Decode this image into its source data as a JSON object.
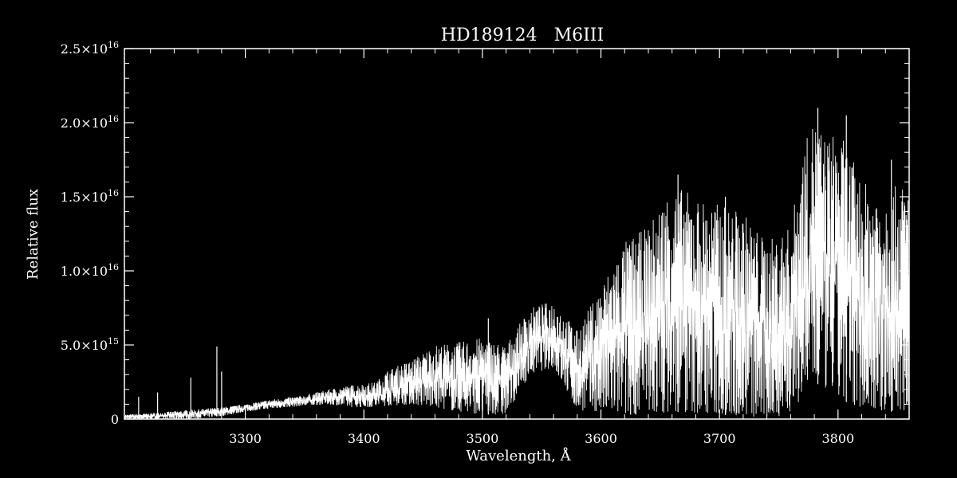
{
  "chart_data": {
    "type": "line",
    "title": "HD189124   M6III",
    "xlabel": "Wavelength, Å",
    "ylabel": "Relative flux",
    "xlim": [
      3198,
      3860
    ],
    "ylim": [
      0,
      2.5e+16
    ],
    "x_ticks": [
      3300,
      3400,
      3500,
      3600,
      3700,
      3800
    ],
    "x_tick_labels": [
      "3300",
      "3400",
      "3500",
      "3600",
      "3700",
      "3800"
    ],
    "y_ticks": [
      0,
      5000000000000000.0,
      1e+16,
      1.5e+16,
      2e+16,
      2.5e+16
    ],
    "y_tick_labels": [
      {
        "mantissa": "0",
        "exp": ""
      },
      {
        "mantissa": "5.0×10",
        "exp": "15"
      },
      {
        "mantissa": "1.0×10",
        "exp": "16"
      },
      {
        "mantissa": "1.5×10",
        "exp": "16"
      },
      {
        "mantissa": "2.0×10",
        "exp": "16"
      },
      {
        "mantissa": "2.5×10",
        "exp": "16"
      }
    ],
    "grid": false,
    "line_color": "#ffffff",
    "background": "#000000",
    "series": [
      {
        "envelope_x": [
          3198,
          3220,
          3250,
          3280,
          3300,
          3320,
          3350,
          3370,
          3390,
          3410,
          3420,
          3440,
          3460,
          3480,
          3500,
          3520,
          3540,
          3560,
          3580,
          3600,
          3620,
          3640,
          3660,
          3680,
          3700,
          3720,
          3740,
          3760,
          3770,
          3780,
          3790,
          3800,
          3810,
          3820,
          3840,
          3860
        ],
        "envelope_upper": [
          300000000000000.0,
          400000000000000.0,
          600000000000000.0,
          800000000000000.0,
          1000000000000000.0,
          1300000000000000.0,
          1600000000000000.0,
          2000000000000000.0,
          2300000000000000.0,
          2500000000000000.0,
          3300000000000000.0,
          4000000000000000.0,
          5000000000000000.0,
          5200000000000000.0,
          5500000000000000.0,
          5000000000000000.0,
          7500000000000000.0,
          8000000000000000.0,
          6000000000000000.0,
          9000000000000000.0,
          1.2e+16,
          1.3e+16,
          1.6e+16,
          1.5e+16,
          1.45e+16,
          1.4e+16,
          1.2e+16,
          1.3e+16,
          1.8e+16,
          2.05e+16,
          1.9e+16,
          1.95e+16,
          1.8e+16,
          1.6e+16,
          1.55e+16,
          1.6e+16
        ],
        "envelope_lower": [
          0,
          0,
          0,
          200000000000000.0,
          500000000000000.0,
          700000000000000.0,
          900000000000000.0,
          1000000000000000.0,
          800000000000000.0,
          800000000000000.0,
          900000000000000.0,
          1000000000000000.0,
          800000000000000.0,
          500000000000000.0,
          300000000000000.0,
          300000000000000.0,
          3000000000000000.0,
          3500000000000000.0,
          600000000000000.0,
          500000000000000.0,
          300000000000000.0,
          300000000000000.0,
          500000000000000.0,
          400000000000000.0,
          300000000000000.0,
          200000000000000.0,
          0,
          400000000000000.0,
          1500000000000000.0,
          2500000000000000.0,
          2000000000000000.0,
          1500000000000000.0,
          1000000000000000.0,
          800000000000000.0,
          500000000000000.0,
          500000000000000.0
        ],
        "spikes": [
          {
            "x": 3210,
            "y": 1500000000000000.0
          },
          {
            "x": 3226,
            "y": 1800000000000000.0
          },
          {
            "x": 3254,
            "y": 2800000000000000.0
          },
          {
            "x": 3276,
            "y": 4900000000000000.0
          },
          {
            "x": 3280,
            "y": 3200000000000000.0
          },
          {
            "x": 3505,
            "y": 6800000000000000.0
          },
          {
            "x": 3625,
            "y": 1.1e+16
          },
          {
            "x": 3665,
            "y": 1.65e+16
          },
          {
            "x": 3705,
            "y": 1.5e+16
          },
          {
            "x": 3783,
            "y": 2.1e+16
          },
          {
            "x": 3807,
            "y": 2.05e+16
          },
          {
            "x": 3845,
            "y": 1.75e+16
          }
        ]
      }
    ]
  }
}
